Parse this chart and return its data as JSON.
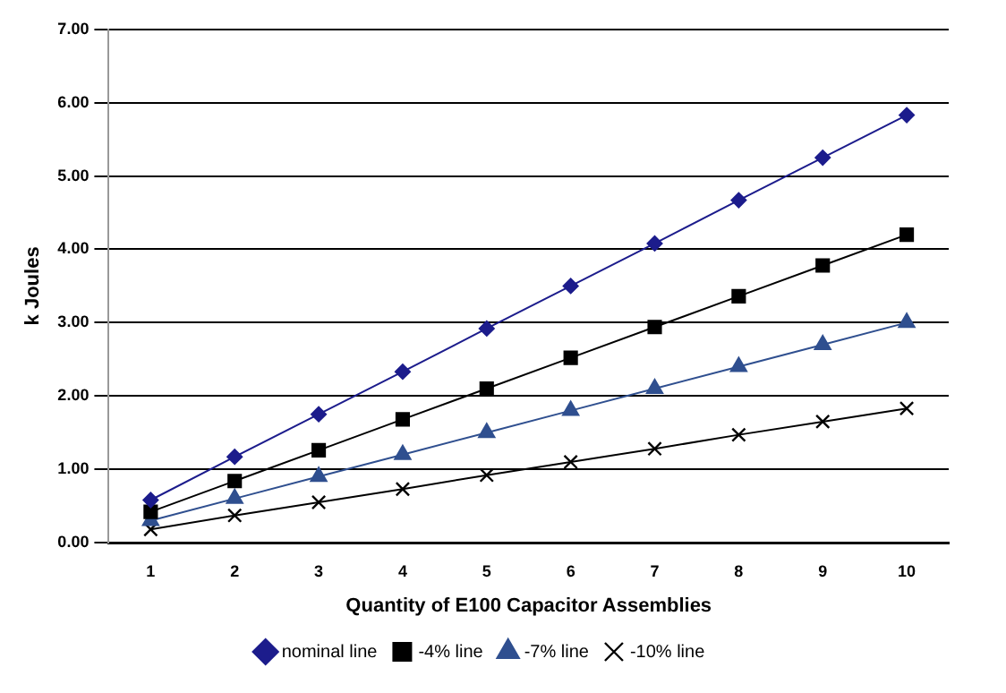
{
  "chart_data": {
    "type": "line",
    "xlabel": "Quantity of E100 Capacitor Assemblies",
    "ylabel": "k Joules",
    "categories": [
      "1",
      "2",
      "3",
      "4",
      "5",
      "6",
      "7",
      "8",
      "9",
      "10"
    ],
    "series": [
      {
        "name": "nominal line",
        "color": "#1c1c8c",
        "marker": "diamond",
        "values": [
          0.58,
          1.17,
          1.75,
          2.33,
          2.92,
          3.5,
          4.08,
          4.67,
          5.25,
          5.83
        ]
      },
      {
        "name": "-4% line",
        "color": "#000000",
        "marker": "square",
        "values": [
          0.42,
          0.84,
          1.26,
          1.68,
          2.1,
          2.52,
          2.94,
          3.36,
          3.78,
          4.2
        ]
      },
      {
        "name": "-7% line",
        "color": "#2f4f8f",
        "marker": "triangle",
        "values": [
          0.3,
          0.6,
          0.9,
          1.2,
          1.5,
          1.8,
          2.1,
          2.4,
          2.7,
          3.0
        ]
      },
      {
        "name": "-10% line",
        "color": "#000000",
        "marker": "cross",
        "values": [
          0.18,
          0.37,
          0.55,
          0.73,
          0.92,
          1.1,
          1.28,
          1.47,
          1.65,
          1.83
        ]
      }
    ],
    "ylim": [
      0,
      7
    ],
    "yticks": [
      {
        "value": 0,
        "label": "0.00"
      },
      {
        "value": 1,
        "label": "1.00"
      },
      {
        "value": 2,
        "label": "2.00"
      },
      {
        "value": 3,
        "label": "3.00"
      },
      {
        "value": 4,
        "label": "4.00"
      },
      {
        "value": 5,
        "label": "5.00"
      },
      {
        "value": 6,
        "label": "6.00"
      },
      {
        "value": 7,
        "label": "7.00"
      }
    ],
    "grid": "y",
    "legend": "bottom",
    "line_style": "solid"
  }
}
